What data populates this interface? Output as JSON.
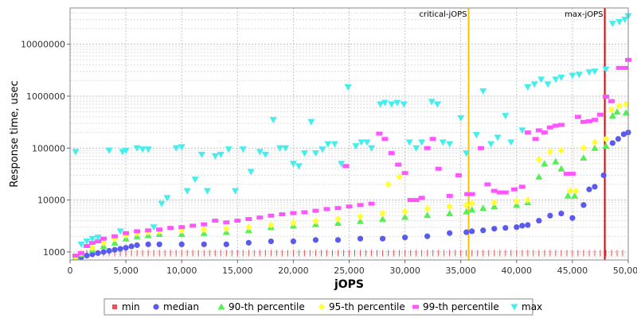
{
  "chart_data": {
    "type": "scatter",
    "xlabel": "jOPS",
    "ylabel": "Response time, usec",
    "xlim": [
      0,
      50000
    ],
    "ylim": [
      700,
      50000000
    ],
    "y_scale": "log",
    "grid": true,
    "legend_position": "bottom",
    "x_ticks": [
      0,
      5000,
      10000,
      15000,
      20000,
      25000,
      30000,
      35000,
      40000,
      45000,
      50000
    ],
    "x_tick_labels": [
      "0",
      "5,000",
      "10,000",
      "15,000",
      "20,000",
      "25,000",
      "30,000",
      "35,000",
      "40,000",
      "45,000",
      "50,000"
    ],
    "y_ticks": [
      1000,
      10000,
      100000,
      1000000,
      10000000
    ],
    "y_tick_labels": [
      "1000",
      "10000",
      "100000",
      "1000000",
      "10000000"
    ],
    "markers": [
      {
        "label": "critical-jOPS",
        "x": 35700,
        "color": "#f5c400"
      },
      {
        "label": "max-jOPS",
        "x": 47900,
        "color": "#e00000"
      }
    ],
    "series": [
      {
        "name": "min",
        "color": "#f05050",
        "marker": "square",
        "values": [
          [
            1000,
            950
          ],
          [
            49800,
            950
          ]
        ]
      },
      {
        "name": "median",
        "color": "#5a5aee",
        "marker": "circle",
        "values": [
          [
            500,
            780
          ],
          [
            1000,
            790
          ],
          [
            1500,
            850
          ],
          [
            2000,
            900
          ],
          [
            2500,
            950
          ],
          [
            3000,
            1000
          ],
          [
            3500,
            1050
          ],
          [
            4000,
            1100
          ],
          [
            4500,
            1150
          ],
          [
            5000,
            1200
          ],
          [
            5500,
            1280
          ],
          [
            6000,
            1350
          ],
          [
            7000,
            1400
          ],
          [
            8000,
            1400
          ],
          [
            10000,
            1400
          ],
          [
            12000,
            1400
          ],
          [
            14000,
            1400
          ],
          [
            16000,
            1500
          ],
          [
            18000,
            1600
          ],
          [
            20000,
            1600
          ],
          [
            22000,
            1700
          ],
          [
            24000,
            1700
          ],
          [
            26000,
            1800
          ],
          [
            28000,
            1800
          ],
          [
            30000,
            1900
          ],
          [
            32000,
            2000
          ],
          [
            34000,
            2300
          ],
          [
            35500,
            2400
          ],
          [
            36000,
            2500
          ],
          [
            37000,
            2600
          ],
          [
            38000,
            2800
          ],
          [
            39000,
            2900
          ],
          [
            40000,
            3000
          ],
          [
            40500,
            3200
          ],
          [
            41000,
            3300
          ],
          [
            42000,
            4000
          ],
          [
            43000,
            5000
          ],
          [
            44000,
            5500
          ],
          [
            45000,
            4500
          ],
          [
            46000,
            8000
          ],
          [
            46500,
            16000
          ],
          [
            47000,
            18000
          ],
          [
            47800,
            30000
          ],
          [
            48600,
            125000
          ],
          [
            49100,
            150000
          ],
          [
            49600,
            185000
          ],
          [
            50000,
            200000
          ]
        ]
      },
      {
        "name": "90-th percentile",
        "color": "#55ee55",
        "marker": "triangle-up",
        "values": [
          [
            500,
            780
          ],
          [
            1000,
            900
          ],
          [
            2000,
            1100
          ],
          [
            3000,
            1300
          ],
          [
            4000,
            1500
          ],
          [
            5000,
            1800
          ],
          [
            6000,
            2000
          ],
          [
            7000,
            2100
          ],
          [
            8000,
            2200
          ],
          [
            10000,
            2200
          ],
          [
            12000,
            2300
          ],
          [
            14000,
            2400
          ],
          [
            16000,
            2600
          ],
          [
            18000,
            3000
          ],
          [
            20000,
            3200
          ],
          [
            22000,
            3400
          ],
          [
            24000,
            3600
          ],
          [
            26000,
            3900
          ],
          [
            28000,
            4300
          ],
          [
            30000,
            4700
          ],
          [
            32000,
            5100
          ],
          [
            34000,
            5500
          ],
          [
            35500,
            6000
          ],
          [
            36000,
            6500
          ],
          [
            37000,
            7000
          ],
          [
            38000,
            7500
          ],
          [
            40000,
            8000
          ],
          [
            41000,
            9000
          ],
          [
            42000,
            28000
          ],
          [
            42500,
            50000
          ],
          [
            43500,
            55000
          ],
          [
            44000,
            40000
          ],
          [
            44600,
            12000
          ],
          [
            45200,
            12000
          ],
          [
            46000,
            65000
          ],
          [
            47000,
            100000
          ],
          [
            48000,
            110000
          ],
          [
            48600,
            420000
          ],
          [
            49000,
            500000
          ],
          [
            49800,
            480000
          ]
        ]
      },
      {
        "name": "95-th percentile",
        "color": "#ffff33",
        "marker": "diamond",
        "values": [
          [
            500,
            800
          ],
          [
            1000,
            950
          ],
          [
            2000,
            1200
          ],
          [
            3000,
            1500
          ],
          [
            4000,
            1800
          ],
          [
            5000,
            2100
          ],
          [
            6000,
            2300
          ],
          [
            7000,
            2400
          ],
          [
            8000,
            2500
          ],
          [
            10000,
            2600
          ],
          [
            12000,
            2700
          ],
          [
            14000,
            2800
          ],
          [
            16000,
            3000
          ],
          [
            18000,
            3300
          ],
          [
            20000,
            3600
          ],
          [
            22000,
            3900
          ],
          [
            24000,
            4300
          ],
          [
            26000,
            4800
          ],
          [
            28000,
            5500
          ],
          [
            28500,
            20000
          ],
          [
            29500,
            28000
          ],
          [
            30000,
            6000
          ],
          [
            32000,
            6800
          ],
          [
            34000,
            7500
          ],
          [
            35500,
            8000
          ],
          [
            36000,
            8500
          ],
          [
            38000,
            9000
          ],
          [
            40000,
            9500
          ],
          [
            41000,
            10000
          ],
          [
            42000,
            60000
          ],
          [
            43000,
            85000
          ],
          [
            44000,
            90000
          ],
          [
            44800,
            15000
          ],
          [
            45300,
            15000
          ],
          [
            46000,
            100000
          ],
          [
            47000,
            130000
          ],
          [
            48000,
            150000
          ],
          [
            48500,
            550000
          ],
          [
            49200,
            650000
          ],
          [
            49800,
            700000
          ]
        ]
      },
      {
        "name": "99-th percentile",
        "color": "#ff55ff",
        "marker": "square-line",
        "values": [
          [
            500,
            850
          ],
          [
            1000,
            950
          ],
          [
            1500,
            1300
          ],
          [
            2000,
            1500
          ],
          [
            2500,
            1600
          ],
          [
            3000,
            1800
          ],
          [
            4000,
            2000
          ],
          [
            5000,
            2300
          ],
          [
            6000,
            2500
          ],
          [
            7000,
            2600
          ],
          [
            8000,
            2700
          ],
          [
            9000,
            2900
          ],
          [
            10000,
            3000
          ],
          [
            11000,
            3200
          ],
          [
            12000,
            3400
          ],
          [
            13000,
            4000
          ],
          [
            14000,
            3700
          ],
          [
            15000,
            4000
          ],
          [
            16000,
            4300
          ],
          [
            17000,
            4600
          ],
          [
            18000,
            5000
          ],
          [
            19000,
            5300
          ],
          [
            20000,
            5600
          ],
          [
            21000,
            5800
          ],
          [
            22000,
            6200
          ],
          [
            23000,
            6700
          ],
          [
            24000,
            7000
          ],
          [
            24700,
            45000
          ],
          [
            25000,
            7500
          ],
          [
            26000,
            8000
          ],
          [
            27000,
            8500
          ],
          [
            27700,
            190000
          ],
          [
            28200,
            150000
          ],
          [
            28800,
            80000
          ],
          [
            29400,
            48000
          ],
          [
            30000,
            33000
          ],
          [
            30500,
            10000
          ],
          [
            31000,
            10000
          ],
          [
            31500,
            11000
          ],
          [
            32000,
            100000
          ],
          [
            32500,
            150000
          ],
          [
            33000,
            40000
          ],
          [
            34000,
            12000
          ],
          [
            34800,
            30000
          ],
          [
            35600,
            13000
          ],
          [
            36000,
            13000
          ],
          [
            36800,
            100000
          ],
          [
            37400,
            20000
          ],
          [
            38000,
            15000
          ],
          [
            38500,
            14000
          ],
          [
            39000,
            14000
          ],
          [
            39800,
            16000
          ],
          [
            40500,
            18000
          ],
          [
            41000,
            200000
          ],
          [
            41700,
            150000
          ],
          [
            42000,
            220000
          ],
          [
            42500,
            200000
          ],
          [
            43000,
            250000
          ],
          [
            43500,
            270000
          ],
          [
            44000,
            280000
          ],
          [
            44500,
            32000
          ],
          [
            45000,
            32000
          ],
          [
            45500,
            400000
          ],
          [
            46000,
            320000
          ],
          [
            46500,
            330000
          ],
          [
            47000,
            350000
          ],
          [
            47500,
            440000
          ],
          [
            48000,
            980000
          ],
          [
            48500,
            800000
          ],
          [
            49200,
            3500000
          ],
          [
            49700,
            3500000
          ],
          [
            50000,
            5000000
          ]
        ]
      },
      {
        "name": "max",
        "color": "#44eeee",
        "marker": "triangle-down",
        "values": [
          [
            500,
            85000
          ],
          [
            1000,
            1400
          ],
          [
            1500,
            1600
          ],
          [
            2000,
            1800
          ],
          [
            2500,
            1900
          ],
          [
            3500,
            90000
          ],
          [
            4500,
            2500
          ],
          [
            4700,
            85000
          ],
          [
            5000,
            90000
          ],
          [
            6000,
            100000
          ],
          [
            6500,
            95000
          ],
          [
            7000,
            95000
          ],
          [
            7500,
            3000
          ],
          [
            8200,
            8500
          ],
          [
            8700,
            11000
          ],
          [
            9500,
            100000
          ],
          [
            10000,
            105000
          ],
          [
            10500,
            15000
          ],
          [
            11200,
            25000
          ],
          [
            11800,
            75000
          ],
          [
            12300,
            15000
          ],
          [
            13000,
            70000
          ],
          [
            13500,
            75000
          ],
          [
            14200,
            95000
          ],
          [
            14800,
            15000
          ],
          [
            15500,
            95000
          ],
          [
            16200,
            35000
          ],
          [
            17000,
            85000
          ],
          [
            17500,
            75000
          ],
          [
            18200,
            350000
          ],
          [
            18800,
            100000
          ],
          [
            19300,
            100000
          ],
          [
            20000,
            50000
          ],
          [
            20500,
            45000
          ],
          [
            21000,
            80000
          ],
          [
            21600,
            320000
          ],
          [
            22000,
            80000
          ],
          [
            22600,
            95000
          ],
          [
            23100,
            120000
          ],
          [
            23700,
            120000
          ],
          [
            24300,
            50000
          ],
          [
            24900,
            1500000
          ],
          [
            25600,
            110000
          ],
          [
            26100,
            130000
          ],
          [
            26600,
            130000
          ],
          [
            27000,
            100000
          ],
          [
            27800,
            700000
          ],
          [
            28200,
            750000
          ],
          [
            28800,
            700000
          ],
          [
            29300,
            750000
          ],
          [
            29900,
            700000
          ],
          [
            30400,
            130000
          ],
          [
            31000,
            100000
          ],
          [
            31500,
            130000
          ],
          [
            32400,
            780000
          ],
          [
            32900,
            700000
          ],
          [
            33400,
            130000
          ],
          [
            34000,
            120000
          ],
          [
            35000,
            380000
          ],
          [
            35500,
            80000
          ],
          [
            36400,
            180000
          ],
          [
            37000,
            1250000
          ],
          [
            37700,
            120000
          ],
          [
            38300,
            160000
          ],
          [
            39000,
            420000
          ],
          [
            39500,
            130000
          ],
          [
            40500,
            220000
          ],
          [
            41000,
            1500000
          ],
          [
            41600,
            1700000
          ],
          [
            42200,
            2100000
          ],
          [
            42800,
            1700000
          ],
          [
            43500,
            2100000
          ],
          [
            44000,
            2300000
          ],
          [
            45000,
            2500000
          ],
          [
            45600,
            2600000
          ],
          [
            46500,
            2900000
          ],
          [
            47000,
            3000000
          ],
          [
            48000,
            3300000
          ],
          [
            48600,
            25000000
          ],
          [
            49200,
            27000000
          ],
          [
            49700,
            30000000
          ],
          [
            50000,
            35000000
          ]
        ]
      }
    ]
  }
}
